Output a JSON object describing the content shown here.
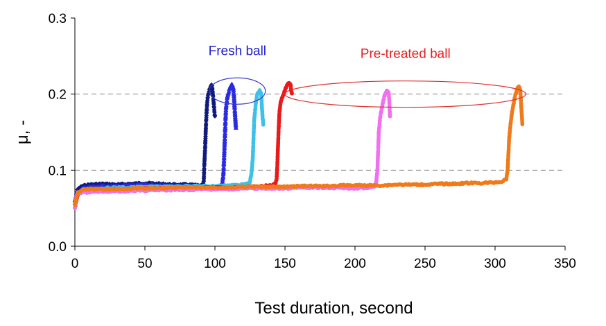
{
  "chart_data": {
    "type": "scatter",
    "xlabel": "Test duration, second",
    "ylabel": "μ, -",
    "xlim": [
      0,
      350
    ],
    "ylim": [
      0.0,
      0.3
    ],
    "x_ticks": [
      "0",
      "50",
      "100",
      "150",
      "200",
      "250",
      "300",
      "350"
    ],
    "y_ticks": [
      "0.0",
      "0.1",
      "0.2",
      "0.3"
    ],
    "grid": {
      "horizontal_dashed_at": [
        0.1,
        0.2
      ]
    },
    "series": [
      {
        "color": "#101A7A",
        "marker": "diamond",
        "points": [
          [
            0,
            0.055
          ],
          [
            1,
            0.068
          ],
          [
            2,
            0.075
          ],
          [
            5,
            0.079
          ],
          [
            10,
            0.081
          ],
          [
            20,
            0.082
          ],
          [
            30,
            0.081
          ],
          [
            40,
            0.082
          ],
          [
            50,
            0.083
          ],
          [
            60,
            0.082
          ],
          [
            70,
            0.081
          ],
          [
            80,
            0.081
          ],
          [
            88,
            0.08
          ],
          [
            91,
            0.079
          ],
          [
            92,
            0.085
          ],
          [
            92.5,
            0.11
          ],
          [
            93,
            0.13
          ],
          [
            93.5,
            0.155
          ],
          [
            94,
            0.175
          ],
          [
            94.5,
            0.19
          ],
          [
            95,
            0.198
          ],
          [
            96,
            0.205
          ],
          [
            97,
            0.21
          ],
          [
            97.5,
            0.212
          ],
          [
            98,
            0.21
          ],
          [
            98.5,
            0.2
          ],
          [
            99,
            0.19
          ],
          [
            99.5,
            0.18
          ],
          [
            100,
            0.17
          ]
        ]
      },
      {
        "color": "#2A2AE0",
        "marker": "triangle",
        "points": [
          [
            0,
            0.06
          ],
          [
            2,
            0.07
          ],
          [
            5,
            0.076
          ],
          [
            10,
            0.078
          ],
          [
            20,
            0.079
          ],
          [
            30,
            0.079
          ],
          [
            40,
            0.08
          ],
          [
            50,
            0.081
          ],
          [
            60,
            0.08
          ],
          [
            70,
            0.079
          ],
          [
            80,
            0.079
          ],
          [
            90,
            0.078
          ],
          [
            100,
            0.077
          ],
          [
            104,
            0.077
          ],
          [
            105,
            0.08
          ],
          [
            106,
            0.095
          ],
          [
            106.5,
            0.115
          ],
          [
            107,
            0.14
          ],
          [
            107.5,
            0.165
          ],
          [
            108,
            0.185
          ],
          [
            109,
            0.198
          ],
          [
            110,
            0.205
          ],
          [
            111,
            0.21
          ],
          [
            112,
            0.213
          ],
          [
            113,
            0.21
          ],
          [
            113.5,
            0.2
          ],
          [
            114,
            0.185
          ],
          [
            114.5,
            0.17
          ],
          [
            115,
            0.155
          ]
        ]
      },
      {
        "color": "#3FC0E8",
        "marker": "circle",
        "points": [
          [
            0,
            0.055
          ],
          [
            2,
            0.068
          ],
          [
            5,
            0.073
          ],
          [
            10,
            0.075
          ],
          [
            20,
            0.076
          ],
          [
            30,
            0.077
          ],
          [
            40,
            0.077
          ],
          [
            50,
            0.078
          ],
          [
            60,
            0.078
          ],
          [
            70,
            0.078
          ],
          [
            80,
            0.079
          ],
          [
            90,
            0.079
          ],
          [
            100,
            0.079
          ],
          [
            110,
            0.08
          ],
          [
            120,
            0.081
          ],
          [
            124,
            0.082
          ],
          [
            125,
            0.085
          ],
          [
            126,
            0.095
          ],
          [
            127,
            0.115
          ],
          [
            127.5,
            0.14
          ],
          [
            128,
            0.165
          ],
          [
            129,
            0.185
          ],
          [
            130,
            0.198
          ],
          [
            131,
            0.203
          ],
          [
            132,
            0.205
          ],
          [
            133,
            0.2
          ],
          [
            133.5,
            0.185
          ],
          [
            134,
            0.17
          ],
          [
            134.5,
            0.16
          ]
        ]
      },
      {
        "color": "#EA1A1A",
        "marker": "circle",
        "points": [
          [
            0,
            0.05
          ],
          [
            2,
            0.068
          ],
          [
            5,
            0.072
          ],
          [
            10,
            0.073
          ],
          [
            20,
            0.074
          ],
          [
            30,
            0.075
          ],
          [
            40,
            0.075
          ],
          [
            50,
            0.076
          ],
          [
            60,
            0.076
          ],
          [
            70,
            0.076
          ],
          [
            80,
            0.077
          ],
          [
            90,
            0.077
          ],
          [
            100,
            0.077
          ],
          [
            110,
            0.077
          ],
          [
            120,
            0.078
          ],
          [
            130,
            0.078
          ],
          [
            135,
            0.079
          ],
          [
            140,
            0.08
          ],
          [
            143,
            0.082
          ],
          [
            144,
            0.088
          ],
          [
            144.5,
            0.105
          ],
          [
            145,
            0.13
          ],
          [
            145.5,
            0.155
          ],
          [
            146,
            0.175
          ],
          [
            147,
            0.19
          ],
          [
            148,
            0.195
          ],
          [
            149,
            0.2
          ],
          [
            150,
            0.205
          ],
          [
            151,
            0.21
          ],
          [
            152,
            0.213
          ],
          [
            153,
            0.214
          ],
          [
            154,
            0.212
          ],
          [
            154.5,
            0.205
          ],
          [
            155,
            0.2
          ]
        ]
      },
      {
        "color": "#F070F0",
        "marker": "circle",
        "points": [
          [
            0,
            0.05
          ],
          [
            1,
            0.065
          ],
          [
            2,
            0.07
          ],
          [
            5,
            0.071
          ],
          [
            10,
            0.071
          ],
          [
            20,
            0.072
          ],
          [
            30,
            0.072
          ],
          [
            40,
            0.073
          ],
          [
            50,
            0.073
          ],
          [
            60,
            0.074
          ],
          [
            70,
            0.074
          ],
          [
            80,
            0.074
          ],
          [
            90,
            0.075
          ],
          [
            100,
            0.075
          ],
          [
            110,
            0.075
          ],
          [
            120,
            0.076
          ],
          [
            130,
            0.076
          ],
          [
            140,
            0.076
          ],
          [
            150,
            0.076
          ],
          [
            160,
            0.077
          ],
          [
            170,
            0.077
          ],
          [
            180,
            0.077
          ],
          [
            190,
            0.077
          ],
          [
            200,
            0.076
          ],
          [
            210,
            0.077
          ],
          [
            214,
            0.079
          ],
          [
            215,
            0.082
          ],
          [
            216,
            0.1
          ],
          [
            216.5,
            0.125
          ],
          [
            217,
            0.15
          ],
          [
            218,
            0.17
          ],
          [
            219,
            0.18
          ],
          [
            220,
            0.19
          ],
          [
            221,
            0.197
          ],
          [
            222,
            0.202
          ],
          [
            223,
            0.205
          ],
          [
            224,
            0.203
          ],
          [
            224.5,
            0.19
          ],
          [
            225,
            0.17
          ]
        ]
      },
      {
        "color": "#F07A1A",
        "marker": "circle",
        "points": [
          [
            0,
            0.055
          ],
          [
            2,
            0.07
          ],
          [
            5,
            0.074
          ],
          [
            10,
            0.075
          ],
          [
            20,
            0.075
          ],
          [
            30,
            0.075
          ],
          [
            40,
            0.076
          ],
          [
            50,
            0.076
          ],
          [
            60,
            0.076
          ],
          [
            70,
            0.077
          ],
          [
            80,
            0.077
          ],
          [
            90,
            0.077
          ],
          [
            100,
            0.077
          ],
          [
            110,
            0.077
          ],
          [
            120,
            0.078
          ],
          [
            130,
            0.078
          ],
          [
            140,
            0.078
          ],
          [
            150,
            0.078
          ],
          [
            160,
            0.079
          ],
          [
            170,
            0.079
          ],
          [
            180,
            0.079
          ],
          [
            190,
            0.08
          ],
          [
            200,
            0.08
          ],
          [
            210,
            0.08
          ],
          [
            220,
            0.08
          ],
          [
            230,
            0.081
          ],
          [
            240,
            0.081
          ],
          [
            250,
            0.081
          ],
          [
            260,
            0.082
          ],
          [
            270,
            0.082
          ],
          [
            280,
            0.083
          ],
          [
            290,
            0.083
          ],
          [
            300,
            0.084
          ],
          [
            305,
            0.085
          ],
          [
            308,
            0.088
          ],
          [
            309,
            0.1
          ],
          [
            309.5,
            0.12
          ],
          [
            310,
            0.14
          ],
          [
            311,
            0.16
          ],
          [
            312,
            0.175
          ],
          [
            313,
            0.185
          ],
          [
            314,
            0.195
          ],
          [
            315,
            0.202
          ],
          [
            316,
            0.208
          ],
          [
            317,
            0.21
          ],
          [
            318,
            0.205
          ],
          [
            318.5,
            0.19
          ],
          [
            319,
            0.175
          ],
          [
            319.5,
            0.16
          ]
        ]
      }
    ],
    "annotations": [
      {
        "text": "Fresh ball",
        "color": "#2020D0",
        "ellipse_color": "#3A3AD0",
        "x_range": [
          96,
          136
        ],
        "y_center": 0.204
      },
      {
        "text": "Pre-treated ball",
        "color": "#E82020",
        "ellipse_color": "#E03030",
        "x_range": [
          150,
          322
        ],
        "y_center": 0.2
      }
    ]
  }
}
